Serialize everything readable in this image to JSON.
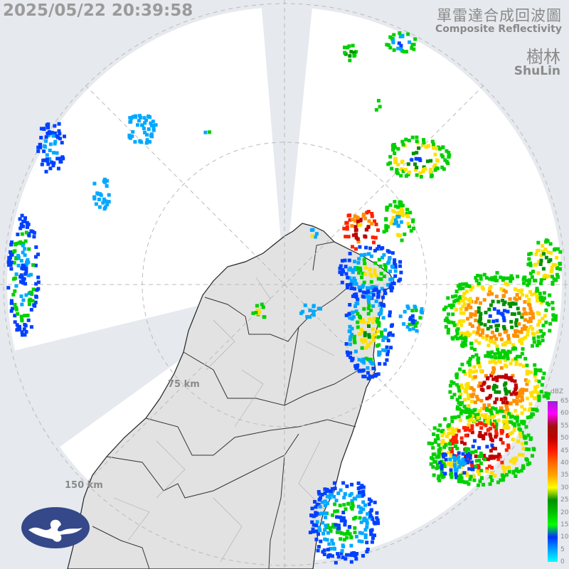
{
  "header": {
    "timestamp": "2025/05/22 20:39:58",
    "title_zh": "單雷達合成回波圖",
    "title_en": "Composite Reflectivity",
    "site_zh": "樹林",
    "site_en": "ShuLin"
  },
  "range_rings": [
    {
      "label": "75 km"
    },
    {
      "label": "150 km"
    }
  ],
  "legend": {
    "unit": "dBZ",
    "ticks": [
      "65",
      "60",
      "55",
      "50",
      "45",
      "40",
      "35",
      "30",
      "25",
      "20",
      "15",
      "10",
      "5",
      "0"
    ],
    "colors": [
      "#9b1fd8",
      "#ff00ff",
      "#a01010",
      "#c00000",
      "#ff1a00",
      "#ff6a00",
      "#ffa500",
      "#ffff00",
      "#009000",
      "#00c000",
      "#00ff00",
      "#0030ff",
      "#00a0ff",
      "#00ffff"
    ]
  },
  "logo": {
    "name": "cwa-logo-icon"
  }
}
